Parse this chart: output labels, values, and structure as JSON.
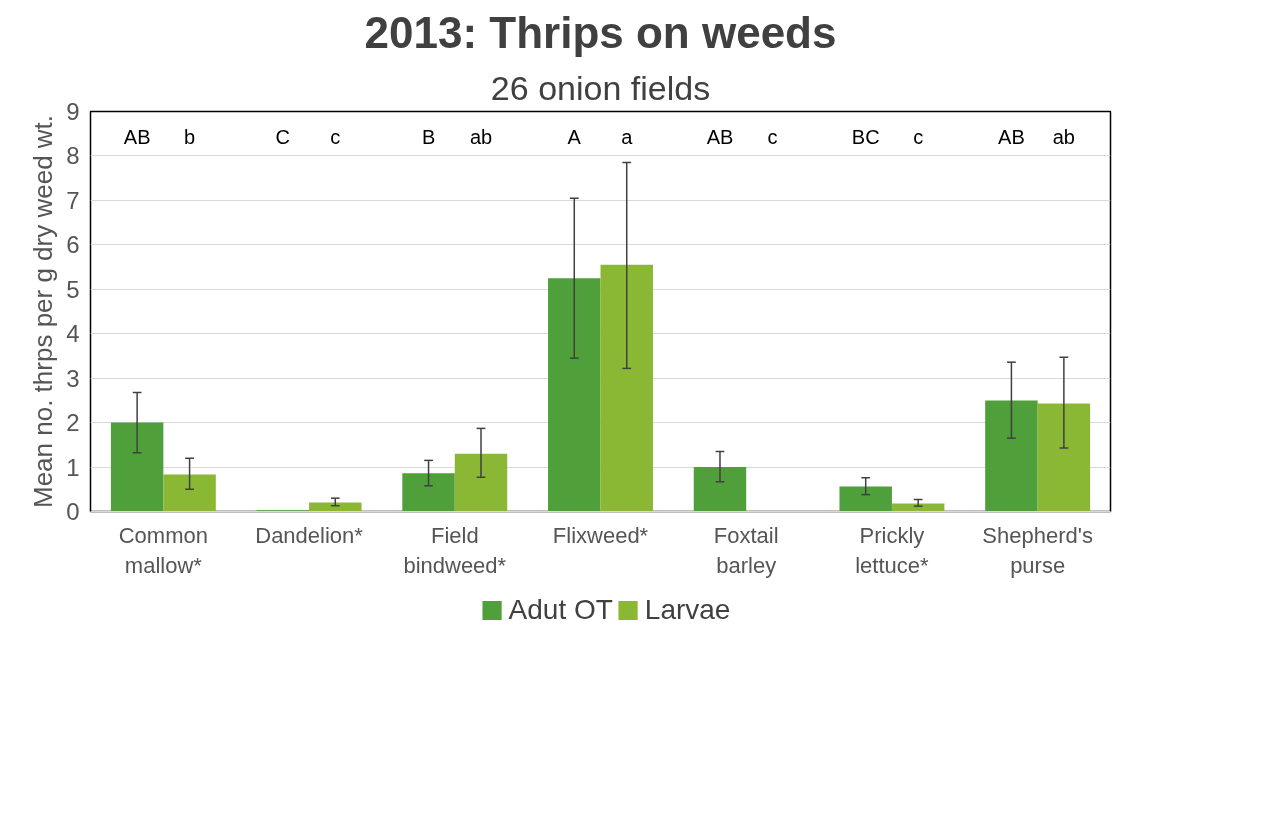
{
  "chart_data": {
    "type": "bar",
    "title": "2013: Thrips on weeds",
    "subtitle": "26 onion fields",
    "ylabel": "Mean no. thrps per g dry weed wt.",
    "categories": [
      "Common mallow*",
      "Dandelion*",
      "Field bindweed*",
      "Flixweed*",
      "Foxtail barley",
      "Prickly lettuce*",
      "Shepherd's purse"
    ],
    "series": [
      {
        "name": "Adut OT",
        "color": "#4f9f3a",
        "values": [
          2.0,
          0.03,
          0.86,
          5.25,
          1.0,
          0.56,
          2.5
        ],
        "errors": [
          [
            1.32,
            2.68
          ],
          null,
          [
            0.58,
            1.15
          ],
          [
            3.45,
            7.05
          ],
          [
            0.67,
            1.35
          ],
          [
            0.38,
            0.76
          ],
          [
            1.65,
            3.36
          ]
        ]
      },
      {
        "name": "Larvae",
        "color": "#8ab834",
        "values": [
          0.83,
          0.2,
          1.3,
          5.55,
          0.0,
          0.18,
          2.43
        ],
        "errors": [
          [
            0.5,
            1.2
          ],
          [
            0.13,
            0.3
          ],
          [
            0.77,
            1.87
          ],
          [
            3.22,
            7.85
          ],
          null,
          [
            0.12,
            0.27
          ],
          [
            1.43,
            3.47
          ]
        ]
      }
    ],
    "annotations": [
      "AB",
      "b",
      "C",
      "c",
      "B",
      "ab",
      "A",
      "a",
      "AB",
      "c",
      "BC",
      "c",
      "AB",
      "ab"
    ],
    "ylim": [
      0,
      9
    ],
    "yticks": [
      0,
      1,
      2,
      3,
      4,
      5,
      6,
      7,
      8,
      9
    ],
    "grid": "y",
    "legend": "bottom"
  }
}
